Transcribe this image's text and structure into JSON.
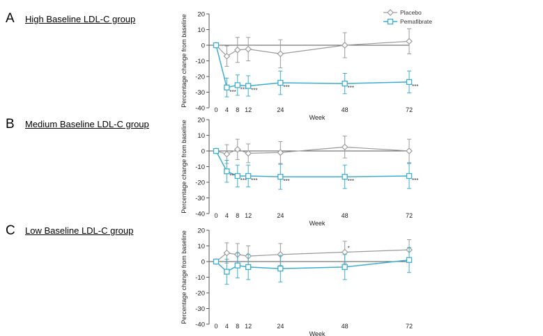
{
  "colors": {
    "placebo": "#9a9a9a",
    "pemafibrate": "#3aaed0",
    "axis": "#555555"
  },
  "legend": {
    "placebo": "Placebo",
    "pemafibrate": "Pemafibrate"
  },
  "chart_data": [
    {
      "type": "line",
      "panel": "A",
      "title": "High Baseline LDL-C group",
      "xlabel": "Week",
      "ylabel": "Percentage change from baseline",
      "ylim": [
        -40,
        20
      ],
      "yticks": [
        20,
        10,
        0,
        -10,
        -20,
        -30,
        -40
      ],
      "x": [
        0,
        4,
        8,
        12,
        24,
        48,
        72
      ],
      "xtick_labels": [
        "0",
        "4",
        "8",
        "12",
        "24",
        "48",
        "72"
      ],
      "series": [
        {
          "name": "Placebo",
          "values": [
            0,
            -7,
            -3,
            -2.5,
            -5.5,
            0,
            2.5
          ],
          "err": [
            0,
            6.5,
            8,
            7.5,
            9,
            8,
            8
          ],
          "markers": [
            "",
            "",
            "",
            "",
            "",
            "",
            ""
          ]
        },
        {
          "name": "Pemafibrate",
          "values": [
            0,
            -27,
            -25.5,
            -26,
            -24,
            -24.5,
            -23.5
          ],
          "err": [
            0,
            6,
            6.5,
            6.5,
            7.5,
            6.5,
            7
          ],
          "markers": [
            "",
            "***",
            "***",
            "***",
            "***",
            "***",
            "***"
          ]
        }
      ]
    },
    {
      "type": "line",
      "panel": "B",
      "title": "Medium Baseline LDL-C group",
      "xlabel": "Week",
      "ylabel": "Percentage change from baseline",
      "ylim": [
        -40,
        20
      ],
      "yticks": [
        20,
        10,
        0,
        -10,
        -20,
        -30,
        -40
      ],
      "x": [
        0,
        4,
        8,
        12,
        24,
        48,
        72
      ],
      "xtick_labels": [
        "0",
        "4",
        "8",
        "12",
        "24",
        "48",
        "72"
      ],
      "series": [
        {
          "name": "Placebo",
          "values": [
            0,
            -2,
            1,
            -1.5,
            -1,
            2.5,
            0
          ],
          "err": [
            0,
            6,
            6.5,
            6,
            7,
            7,
            7.5
          ],
          "markers": [
            "",
            "",
            "",
            "",
            "",
            "",
            ""
          ]
        },
        {
          "name": "Pemafibrate",
          "values": [
            0,
            -13,
            -16,
            -16,
            -16.5,
            -16.5,
            -16
          ],
          "err": [
            0,
            7,
            7,
            7,
            8,
            7.5,
            8
          ],
          "markers": [
            "",
            "***",
            "***",
            "***",
            "***",
            "***",
            "***"
          ]
        }
      ]
    },
    {
      "type": "line",
      "panel": "C",
      "title": "Low Baseline LDL-C group",
      "xlabel": "Week",
      "ylabel": "Percentage change from baseline",
      "ylim": [
        -40,
        20
      ],
      "yticks": [
        20,
        10,
        0,
        -10,
        -20,
        -30,
        -40
      ],
      "x": [
        0,
        4,
        8,
        12,
        24,
        48,
        72
      ],
      "xtick_labels": [
        "0",
        "4",
        "8",
        "12",
        "24",
        "48",
        "72"
      ],
      "series": [
        {
          "name": "Placebo",
          "values": [
            0,
            5.5,
            4.5,
            3.5,
            4.5,
            6,
            7.5
          ],
          "err": [
            0,
            6.5,
            7,
            6.5,
            7,
            7,
            6.5
          ],
          "markers": [
            "",
            "",
            "",
            "",
            "",
            "*",
            ""
          ]
        },
        {
          "name": "Pemafibrate",
          "values": [
            0,
            -6.5,
            -2.5,
            -3.5,
            -4.5,
            -3.5,
            1
          ],
          "err": [
            0,
            8,
            8,
            8,
            8.5,
            8,
            8
          ],
          "markers": [
            "",
            "",
            "",
            "",
            "",
            "",
            ""
          ]
        }
      ]
    }
  ]
}
